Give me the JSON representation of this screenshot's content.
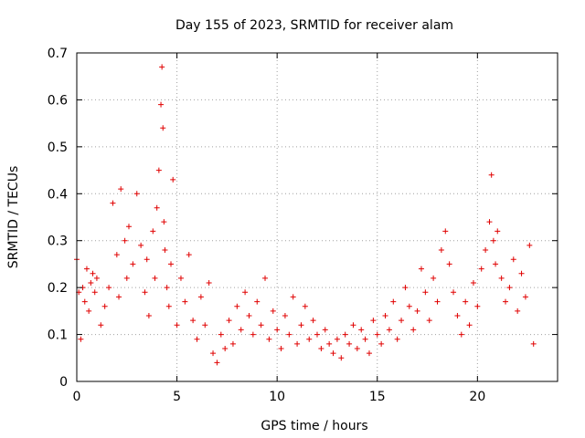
{
  "chart_data": {
    "type": "scatter",
    "title": "Day 155 of 2023, SRMTID for receiver alam",
    "xlabel": "GPS time / hours",
    "ylabel": "SRMTID / TECUs",
    "xlim": [
      0,
      24
    ],
    "ylim": [
      0,
      0.7
    ],
    "x_ticks": [
      0,
      5,
      10,
      15,
      20
    ],
    "x_tick_labels": [
      "0",
      "5",
      "10",
      "15",
      "20"
    ],
    "y_ticks": [
      0,
      0.1,
      0.2,
      0.3,
      0.4,
      0.5,
      0.6,
      0.7
    ],
    "y_tick_labels": [
      "0",
      "0.1",
      "0.2",
      "0.3",
      "0.4",
      "0.5",
      "0.6",
      "0.7"
    ],
    "grid": true,
    "marker": "plus",
    "color": "#e00000",
    "series": [
      {
        "name": "SRMTID",
        "x": [
          0.0,
          0.1,
          0.2,
          0.3,
          0.4,
          0.5,
          0.6,
          0.7,
          0.8,
          0.9,
          1.0,
          1.2,
          1.4,
          1.6,
          1.8,
          2.0,
          2.1,
          2.2,
          2.4,
          2.5,
          2.6,
          2.8,
          3.0,
          3.2,
          3.4,
          3.5,
          3.6,
          3.8,
          3.9,
          4.0,
          4.1,
          4.2,
          4.25,
          4.3,
          4.35,
          4.4,
          4.5,
          4.6,
          4.7,
          4.8,
          5.0,
          5.2,
          5.4,
          5.6,
          5.8,
          6.0,
          6.2,
          6.4,
          6.6,
          6.8,
          7.0,
          7.2,
          7.4,
          7.6,
          7.8,
          8.0,
          8.2,
          8.4,
          8.6,
          8.8,
          9.0,
          9.2,
          9.4,
          9.6,
          9.8,
          10.0,
          10.2,
          10.4,
          10.6,
          10.8,
          11.0,
          11.2,
          11.4,
          11.6,
          11.8,
          12.0,
          12.2,
          12.4,
          12.6,
          12.8,
          13.0,
          13.2,
          13.4,
          13.6,
          13.8,
          14.0,
          14.2,
          14.4,
          14.6,
          14.8,
          15.0,
          15.2,
          15.4,
          15.6,
          15.8,
          16.0,
          16.2,
          16.4,
          16.6,
          16.8,
          17.0,
          17.2,
          17.4,
          17.6,
          17.8,
          18.0,
          18.2,
          18.4,
          18.6,
          18.8,
          19.0,
          19.2,
          19.4,
          19.6,
          19.8,
          20.0,
          20.2,
          20.4,
          20.6,
          20.7,
          20.8,
          20.9,
          21.0,
          21.2,
          21.4,
          21.6,
          21.8,
          22.0,
          22.2,
          22.4,
          22.6,
          22.8
        ],
        "y": [
          0.26,
          0.19,
          0.09,
          0.2,
          0.17,
          0.24,
          0.15,
          0.21,
          0.23,
          0.19,
          0.22,
          0.12,
          0.16,
          0.2,
          0.38,
          0.27,
          0.18,
          0.41,
          0.3,
          0.22,
          0.33,
          0.25,
          0.4,
          0.29,
          0.19,
          0.26,
          0.14,
          0.32,
          0.22,
          0.37,
          0.45,
          0.59,
          0.67,
          0.54,
          0.34,
          0.28,
          0.2,
          0.16,
          0.25,
          0.43,
          0.12,
          0.22,
          0.17,
          0.27,
          0.13,
          0.09,
          0.18,
          0.12,
          0.21,
          0.06,
          0.04,
          0.1,
          0.07,
          0.13,
          0.08,
          0.16,
          0.11,
          0.19,
          0.14,
          0.1,
          0.17,
          0.12,
          0.22,
          0.09,
          0.15,
          0.11,
          0.07,
          0.14,
          0.1,
          0.18,
          0.08,
          0.12,
          0.16,
          0.09,
          0.13,
          0.1,
          0.07,
          0.11,
          0.08,
          0.06,
          0.09,
          0.05,
          0.1,
          0.08,
          0.12,
          0.07,
          0.11,
          0.09,
          0.06,
          0.13,
          0.1,
          0.08,
          0.14,
          0.11,
          0.17,
          0.09,
          0.13,
          0.2,
          0.16,
          0.11,
          0.15,
          0.24,
          0.19,
          0.13,
          0.22,
          0.17,
          0.28,
          0.32,
          0.25,
          0.19,
          0.14,
          0.1,
          0.17,
          0.12,
          0.21,
          0.16,
          0.24,
          0.28,
          0.34,
          0.44,
          0.3,
          0.25,
          0.32,
          0.22,
          0.17,
          0.2,
          0.26,
          0.15,
          0.23,
          0.18,
          0.29,
          0.08
        ]
      }
    ]
  }
}
